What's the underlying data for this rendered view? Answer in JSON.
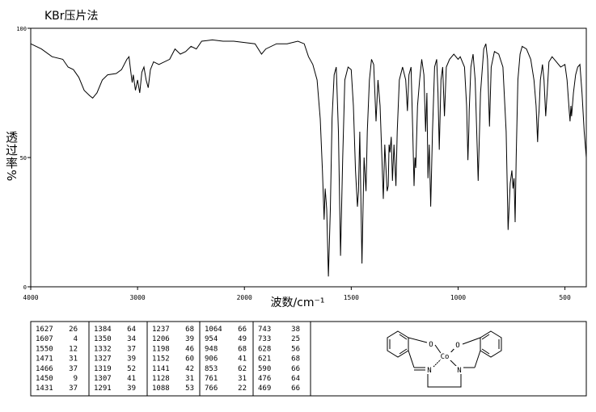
{
  "chart_data": {
    "type": "line",
    "title": "KBr压片法",
    "xlabel": "波数/cm⁻¹",
    "ylabel": "透过率%",
    "color": "#000000",
    "xlim": [
      4000,
      400
    ],
    "xticks": [
      4000,
      3000,
      2000,
      1500,
      1000,
      500
    ],
    "ylim": [
      0,
      100
    ],
    "yticks": [
      0,
      50,
      100
    ],
    "x": [
      4000,
      3900,
      3800,
      3700,
      3650,
      3600,
      3550,
      3500,
      3450,
      3420,
      3380,
      3330,
      3280,
      3200,
      3150,
      3100,
      3080,
      3060,
      3050,
      3040,
      3020,
      3000,
      2980,
      2960,
      2940,
      2920,
      2900,
      2880,
      2850,
      2800,
      2700,
      2650,
      2600,
      2550,
      2500,
      2450,
      2400,
      2300,
      2200,
      2100,
      2000,
      1950,
      1920,
      1900,
      1850,
      1800,
      1750,
      1720,
      1700,
      1680,
      1660,
      1645,
      1635,
      1627,
      1622,
      1615,
      1607,
      1598,
      1590,
      1580,
      1570,
      1560,
      1550,
      1540,
      1530,
      1515,
      1500,
      1490,
      1480,
      1471,
      1466,
      1460,
      1455,
      1450,
      1445,
      1440,
      1431,
      1425,
      1415,
      1405,
      1395,
      1384,
      1375,
      1365,
      1350,
      1343,
      1332,
      1327,
      1323,
      1319,
      1313,
      1307,
      1300,
      1291,
      1285,
      1275,
      1260,
      1245,
      1237,
      1230,
      1220,
      1212,
      1206,
      1202,
      1198,
      1190,
      1180,
      1170,
      1160,
      1152,
      1146,
      1141,
      1135,
      1128,
      1120,
      1110,
      1100,
      1094,
      1088,
      1080,
      1072,
      1064,
      1055,
      1040,
      1020,
      1000,
      990,
      970,
      960,
      954,
      950,
      948,
      940,
      930,
      920,
      906,
      895,
      880,
      870,
      862,
      853,
      845,
      830,
      810,
      790,
      775,
      766,
      761,
      756,
      748,
      743,
      738,
      733,
      728,
      720,
      710,
      700,
      680,
      660,
      645,
      635,
      628,
      624,
      621,
      615,
      605,
      598,
      590,
      583,
      575,
      560,
      540,
      520,
      500,
      490,
      480,
      476,
      472,
      469,
      460,
      450,
      440,
      430,
      420,
      410,
      400
    ],
    "values": [
      94,
      92,
      89,
      88,
      85,
      84,
      81,
      76,
      74,
      73,
      75,
      80,
      82,
      82.5,
      84,
      88,
      89,
      82,
      79,
      82,
      76,
      80,
      75,
      83,
      85,
      80,
      77,
      84,
      87,
      86,
      88,
      92,
      90,
      91,
      93,
      92,
      95,
      95.5,
      95,
      95,
      94.5,
      94,
      90,
      92,
      94,
      94,
      95,
      94,
      89,
      86,
      80,
      65,
      45,
      26,
      38,
      30,
      4,
      30,
      65,
      82,
      85,
      60,
      12,
      50,
      80,
      85,
      84,
      70,
      45,
      31,
      37,
      60,
      35,
      9,
      30,
      50,
      37,
      60,
      80,
      88,
      86,
      64,
      80,
      70,
      34,
      55,
      37,
      39,
      55,
      52,
      58,
      41,
      55,
      39,
      60,
      80,
      85,
      80,
      68,
      82,
      85,
      60,
      39,
      50,
      46,
      70,
      80,
      88,
      82,
      60,
      75,
      42,
      55,
      31,
      60,
      85,
      88,
      75,
      53,
      80,
      85,
      66,
      85,
      88,
      90,
      88,
      89,
      85,
      70,
      49,
      60,
      68,
      85,
      90,
      80,
      41,
      75,
      92,
      94,
      88,
      62,
      85,
      91,
      90,
      85,
      60,
      22,
      31,
      40,
      45,
      38,
      42,
      25,
      50,
      80,
      90,
      93,
      92,
      88,
      80,
      70,
      56,
      65,
      68,
      80,
      86,
      80,
      66,
      75,
      87,
      89,
      87,
      85,
      86,
      80,
      68,
      64,
      70,
      66,
      75,
      82,
      85,
      86,
      75,
      60,
      50
    ]
  },
  "peak_table": {
    "columns": [
      [
        [
          1627,
          26
        ],
        [
          1607,
          4
        ],
        [
          1550,
          12
        ],
        [
          1471,
          31
        ],
        [
          1466,
          37
        ],
        [
          1450,
          9
        ],
        [
          1431,
          37
        ]
      ],
      [
        [
          1384,
          64
        ],
        [
          1350,
          34
        ],
        [
          1332,
          37
        ],
        [
          1327,
          39
        ],
        [
          1319,
          52
        ],
        [
          1307,
          41
        ],
        [
          1291,
          39
        ]
      ],
      [
        [
          1237,
          68
        ],
        [
          1206,
          39
        ],
        [
          1198,
          46
        ],
        [
          1152,
          60
        ],
        [
          1141,
          42
        ],
        [
          1128,
          31
        ],
        [
          1088,
          53
        ]
      ],
      [
        [
          1064,
          66
        ],
        [
          954,
          49
        ],
        [
          948,
          68
        ],
        [
          906,
          41
        ],
        [
          853,
          62
        ],
        [
          761,
          31
        ],
        [
          766,
          22
        ]
      ],
      [
        [
          743,
          38
        ],
        [
          733,
          25
        ],
        [
          628,
          56
        ],
        [
          621,
          68
        ],
        [
          590,
          66
        ],
        [
          476,
          64
        ],
        [
          469,
          66
        ]
      ]
    ]
  },
  "structure": {
    "atoms": [
      "O",
      "Co",
      "N",
      "N",
      "O"
    ]
  }
}
